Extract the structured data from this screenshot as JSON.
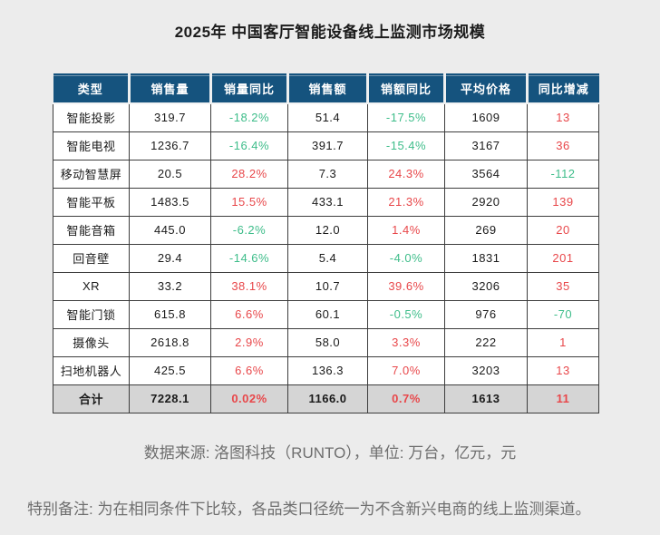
{
  "chart_data": {
    "type": "table",
    "title": "2025年 中国客厅智能设备线上监测市场规模",
    "columns": [
      "类型",
      "销售量",
      "销量同比",
      "销售额",
      "销额同比",
      "平均价格",
      "同比增减"
    ],
    "rows": [
      [
        "智能投影",
        "319.7",
        "-18.2%",
        "51.4",
        "-17.5%",
        "1609",
        "13"
      ],
      [
        "智能电视",
        "1236.7",
        "-16.4%",
        "391.7",
        "-15.4%",
        "3167",
        "36"
      ],
      [
        "移动智慧屏",
        "20.5",
        "28.2%",
        "7.3",
        "24.3%",
        "3564",
        "-112"
      ],
      [
        "智能平板",
        "1483.5",
        "15.5%",
        "433.1",
        "21.3%",
        "2920",
        "139"
      ],
      [
        "智能音箱",
        "445.0",
        "-6.2%",
        "12.0",
        "1.4%",
        "269",
        "20"
      ],
      [
        "回音壁",
        "29.4",
        "-14.6%",
        "5.4",
        "-4.0%",
        "1831",
        "201"
      ],
      [
        "XR",
        "33.2",
        "38.1%",
        "10.7",
        "39.6%",
        "3206",
        "35"
      ],
      [
        "智能门锁",
        "615.8",
        "6.6%",
        "60.1",
        "-0.5%",
        "976",
        "-70"
      ],
      [
        "摄像头",
        "2618.8",
        "2.9%",
        "58.0",
        "3.3%",
        "222",
        "1"
      ],
      [
        "扫地机器人",
        "425.5",
        "6.6%",
        "136.3",
        "7.0%",
        "3203",
        "13"
      ]
    ],
    "total_row": [
      "合计",
      "7228.1",
      "0.02%",
      "1166.0",
      "0.7%",
      "1613",
      "11"
    ],
    "colored_columns": [
      2,
      4,
      6
    ],
    "color_rule": "negative values green, positive values red",
    "source_note": "数据来源: 洛图科技（RUNTO），单位: 万台，亿元，元",
    "special_note": "特别备注: 为在相同条件下比较，各品类口径统一为不含新兴电商的线上监测渠道。"
  },
  "colors": {
    "header_bg": "#15537E",
    "positive_red": "#E8474A",
    "negative_green": "#3EBD8A",
    "total_row_bg": "#D5D5D5",
    "page_bg": "#ECECEC"
  }
}
